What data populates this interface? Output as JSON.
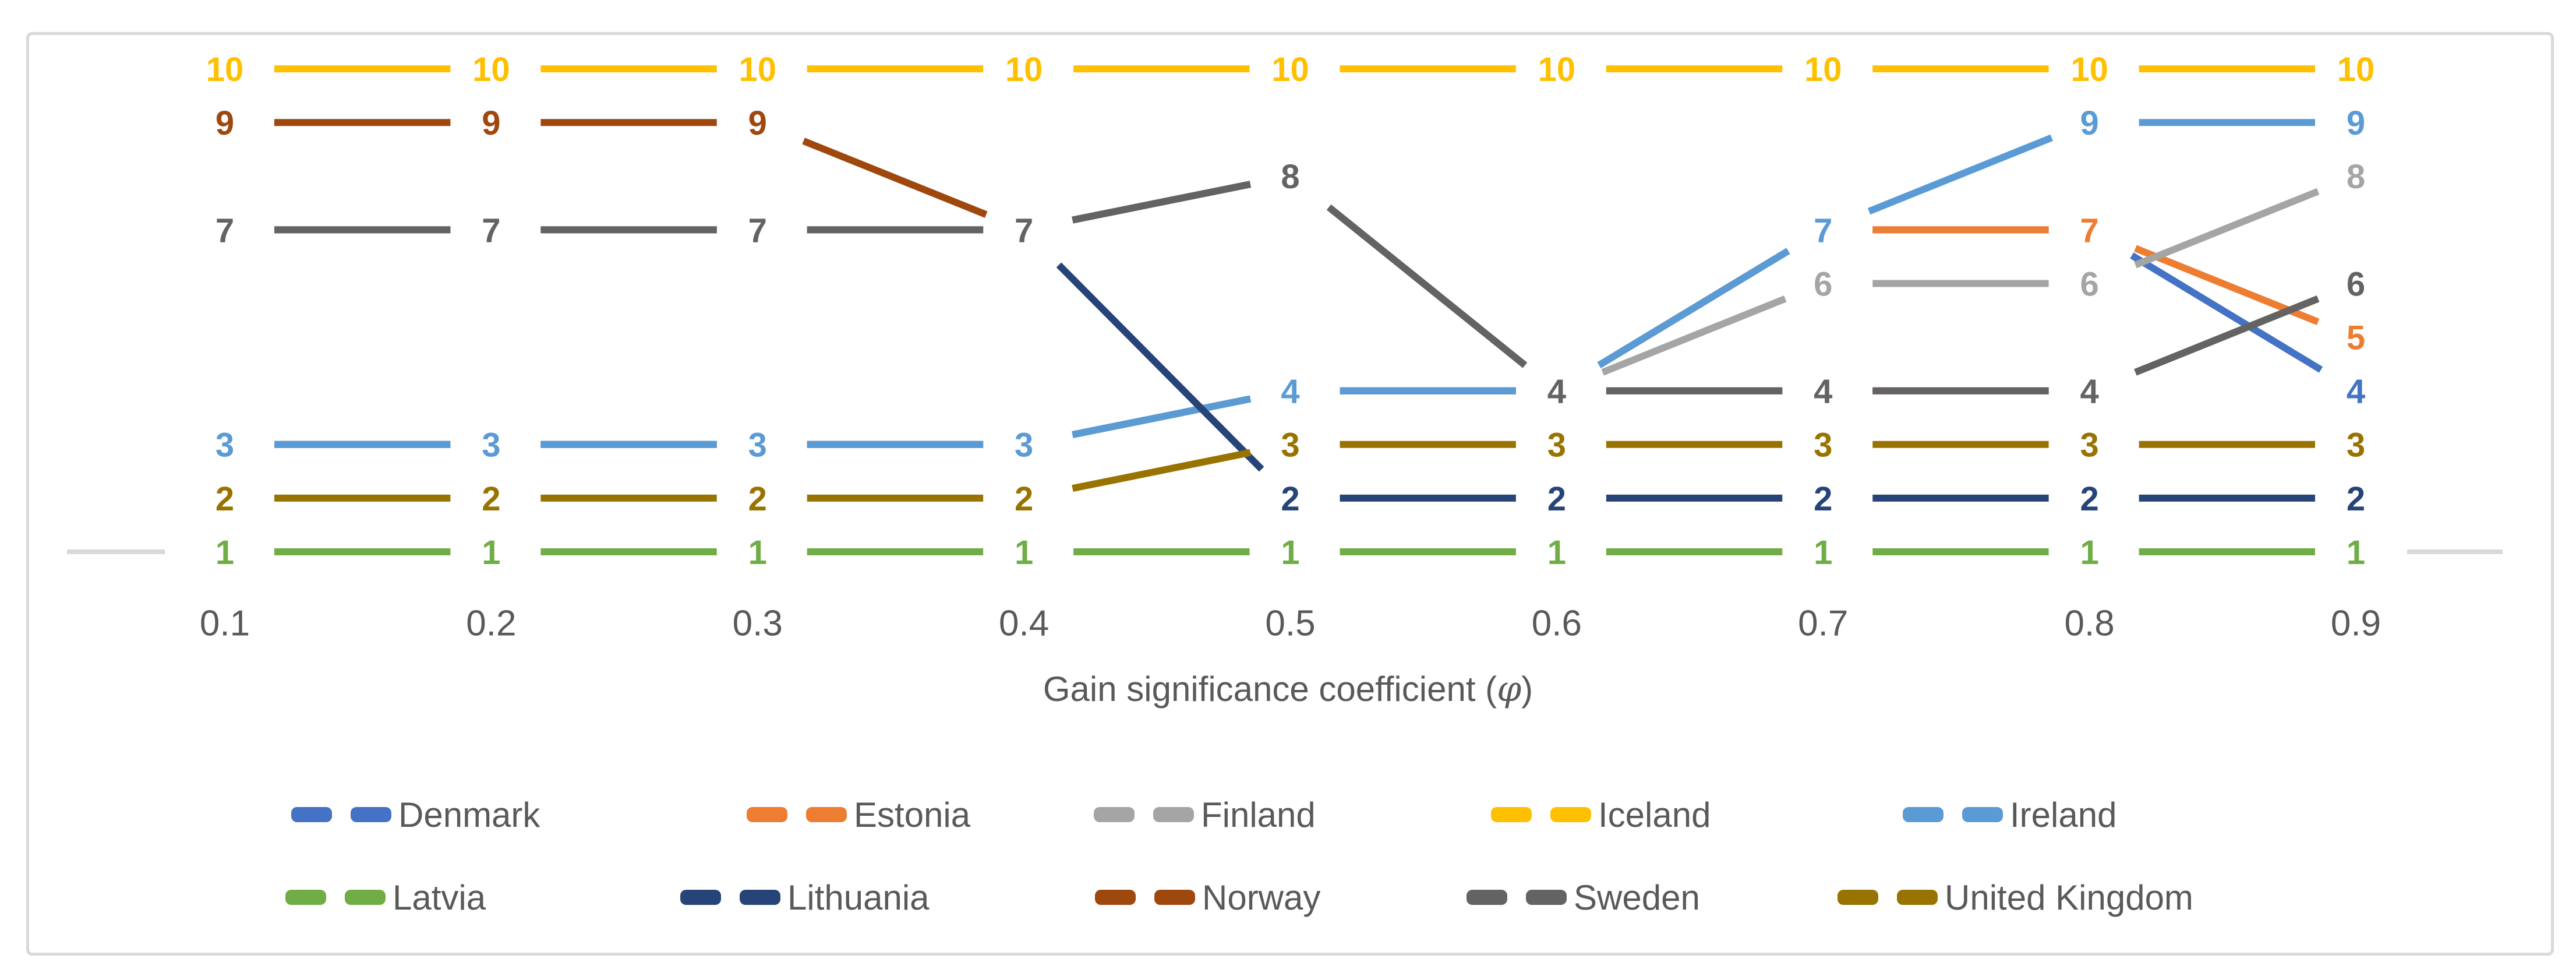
{
  "axis_title": {
    "pre": "Gain significance coefficient (",
    "phi": "φ",
    "post": ")"
  },
  "chart_data": {
    "type": "line",
    "title": "",
    "xlabel": "Gain significance coefficient (φ)",
    "ylabel": "",
    "x": [
      0.1,
      0.2,
      0.3,
      0.4,
      0.5,
      0.6,
      0.7,
      0.8,
      0.9
    ],
    "x_labels": [
      "0.1",
      "0.2",
      "0.3",
      "0.4",
      "0.5",
      "0.6",
      "0.7",
      "0.8",
      "0.9"
    ],
    "ylim": [
      1,
      10
    ],
    "grid": false,
    "legend_position": "bottom",
    "data_labels": true,
    "line_style": "long-dash",
    "axis_color": "#D9D9D9",
    "text_color": "#595959",
    "series": [
      {
        "name": "Denmark",
        "color": "#4472C4",
        "values": [
          3,
          3,
          3,
          3,
          4,
          4,
          7,
          7,
          4
        ]
      },
      {
        "name": "Estonia",
        "color": "#ED7D31",
        "values": [
          3,
          3,
          3,
          3,
          4,
          4,
          7,
          7,
          5
        ]
      },
      {
        "name": "Finland",
        "color": "#A5A5A5",
        "values": [
          3,
          3,
          3,
          3,
          4,
          4,
          6,
          6,
          8
        ]
      },
      {
        "name": "Iceland",
        "color": "#FFC000",
        "values": [
          10,
          10,
          10,
          10,
          10,
          10,
          10,
          10,
          10
        ]
      },
      {
        "name": "Ireland",
        "color": "#5B9BD5",
        "values": [
          3,
          3,
          3,
          3,
          4,
          4,
          7,
          9,
          9
        ]
      },
      {
        "name": "Latvia",
        "color": "#70AD47",
        "values": [
          1,
          1,
          1,
          1,
          1,
          1,
          1,
          1,
          1
        ]
      },
      {
        "name": "Lithuania",
        "color": "#264478",
        "values": [
          7,
          7,
          7,
          7,
          2,
          2,
          2,
          2,
          2
        ]
      },
      {
        "name": "Norway",
        "color": "#9E480E",
        "values": [
          9,
          9,
          9,
          7,
          8,
          4,
          4,
          4,
          6
        ]
      },
      {
        "name": "Sweden",
        "color": "#636363",
        "values": [
          7,
          7,
          7,
          7,
          8,
          4,
          4,
          4,
          6
        ]
      },
      {
        "name": "United Kingdom",
        "color": "#997300",
        "values": [
          2,
          2,
          2,
          2,
          3,
          3,
          3,
          3,
          3
        ]
      }
    ]
  }
}
